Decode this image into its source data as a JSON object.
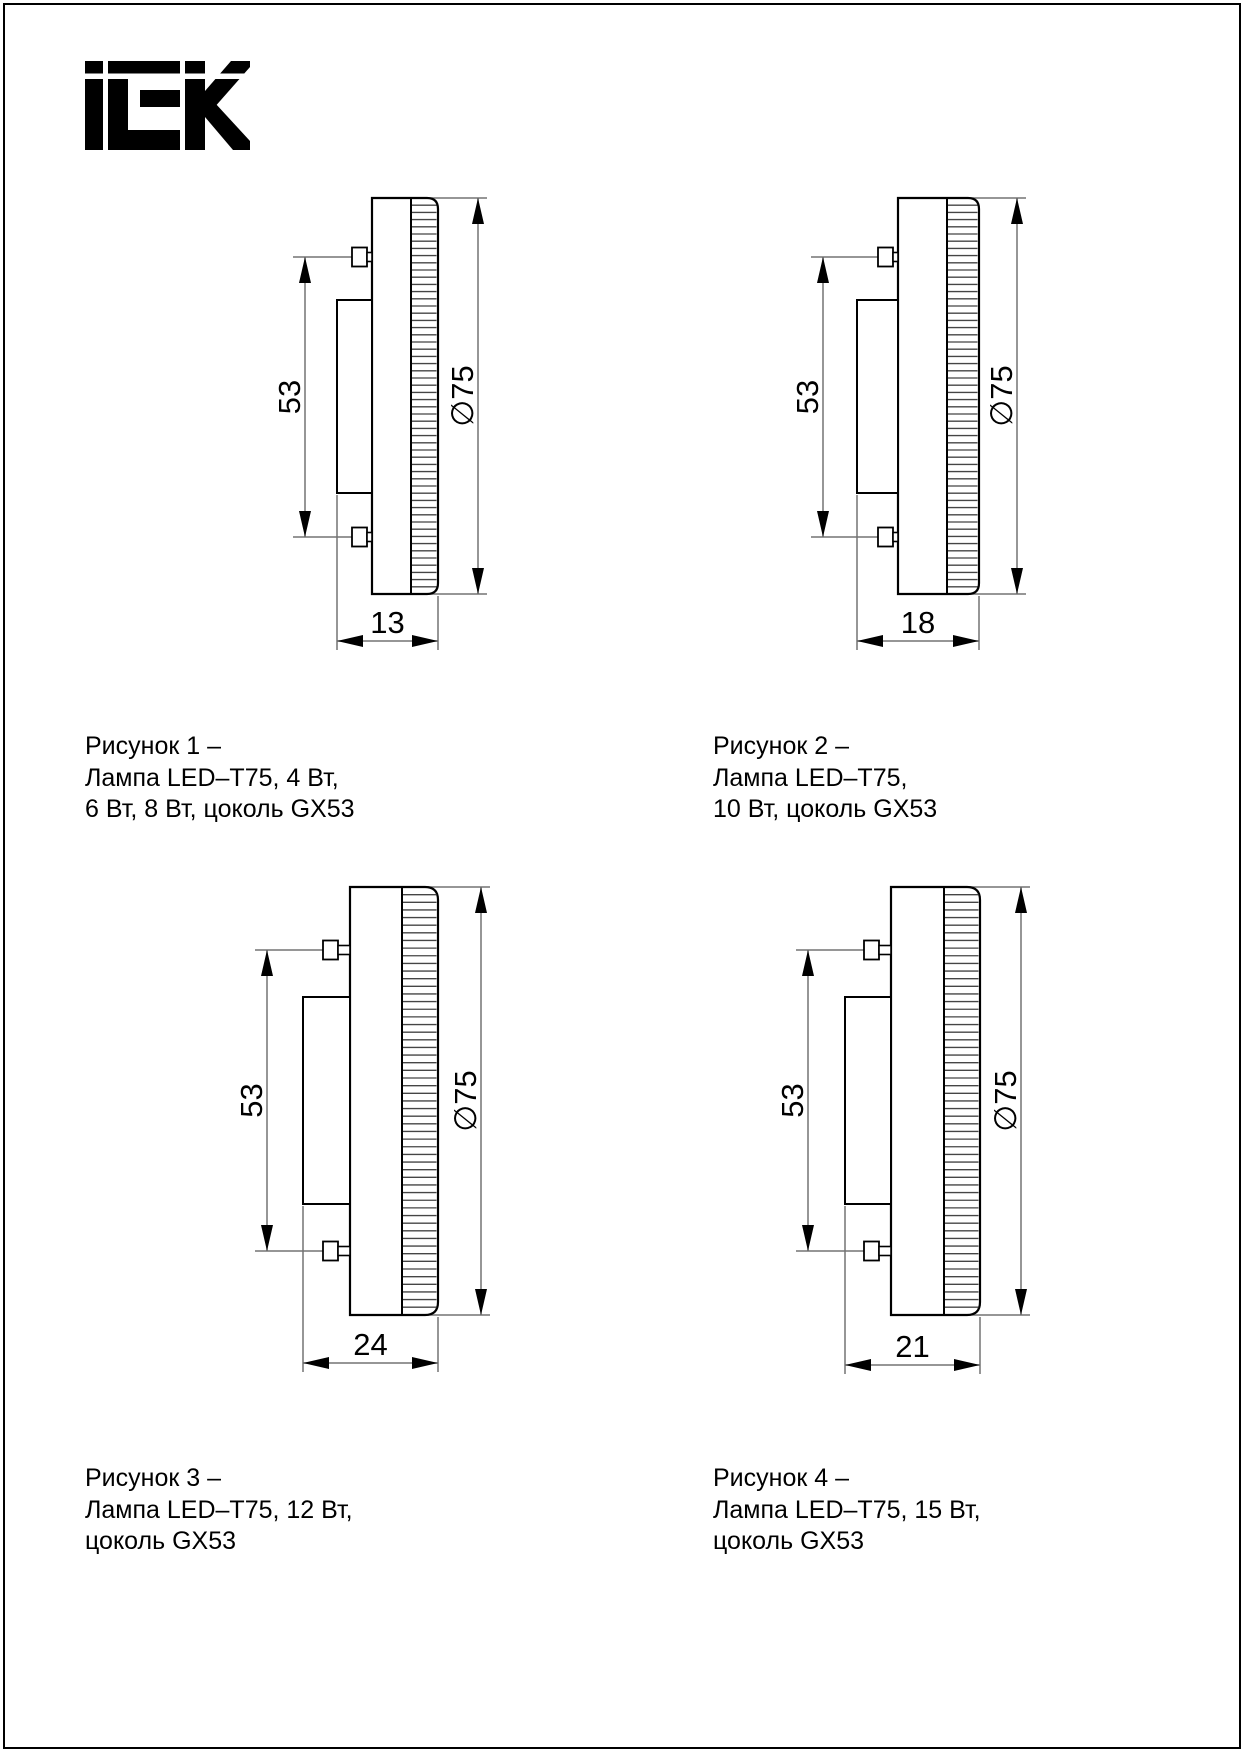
{
  "page": {
    "background": "#ffffff",
    "border_color": "#000000",
    "line_color": "#000000",
    "dim_line_color": "#737373"
  },
  "logo": {
    "brand": "iEK",
    "color": "#000000"
  },
  "figures": [
    {
      "caption_lines": [
        "Рисунок 1 –",
        "Лампа LED–T75, 4 Вт,",
        "6 Вт, 8 Вт, цоколь GX53"
      ],
      "dim_height": "53",
      "dim_diameter": "∅75",
      "dim_depth": "13"
    },
    {
      "caption_lines": [
        "Рисунок 2 –",
        "Лампа LED–T75,",
        "10 Вт, цоколь GX53"
      ],
      "dim_height": "53",
      "dim_diameter": "∅75",
      "dim_depth": "18"
    },
    {
      "caption_lines": [
        "Рисунок 3 –",
        "Лампа LED–T75, 12 Вт,",
        "цоколь GX53"
      ],
      "dim_height": "53",
      "dim_diameter": "∅75",
      "dim_depth": "24"
    },
    {
      "caption_lines": [
        "Рисунок 4 –",
        "Лампа LED–T75, 15 Вт,",
        "цоколь GX53"
      ],
      "dim_height": "53",
      "dim_diameter": "∅75",
      "dim_depth": "21"
    }
  ]
}
